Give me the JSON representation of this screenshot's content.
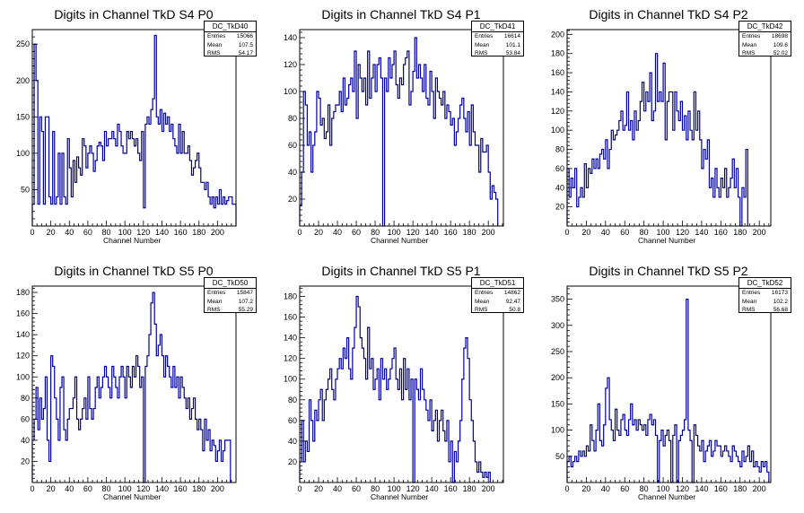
{
  "chart_data": [
    {
      "type": "histogram",
      "title": "Digits in Channel TkD S4 P0",
      "xlabel": "Channel Number",
      "xlim": [
        0,
        220
      ],
      "ylim": [
        0,
        270
      ],
      "xticks": [
        0,
        20,
        40,
        60,
        80,
        100,
        120,
        140,
        160,
        180,
        200
      ],
      "yticks": [
        50,
        100,
        150,
        200,
        250
      ],
      "stats": {
        "name": "DC_TkD40",
        "entries": "15066",
        "mean": "107.5",
        "rms": "54.17"
      },
      "bin_width": 2,
      "values": [
        30,
        250,
        200,
        30,
        150,
        130,
        30,
        150,
        150,
        40,
        30,
        130,
        30,
        40,
        100,
        30,
        100,
        40,
        30,
        120,
        80,
        40,
        90,
        60,
        95,
        80,
        70,
        120,
        110,
        80,
        100,
        110,
        100,
        75,
        90,
        110,
        115,
        110,
        90,
        130,
        110,
        120,
        120,
        130,
        120,
        110,
        140,
        130,
        110,
        100,
        100,
        130,
        120,
        130,
        120,
        110,
        120,
        100,
        90,
        130,
        25,
        140,
        150,
        140,
        160,
        175,
        262,
        150,
        140,
        160,
        130,
        155,
        140,
        150,
        130,
        140,
        120,
        110,
        100,
        140,
        100,
        130,
        100,
        100,
        110,
        90,
        70,
        80,
        90,
        100,
        80,
        60,
        60,
        50,
        60,
        40,
        30,
        40,
        25,
        40,
        30,
        50,
        30,
        40,
        30,
        35,
        40,
        40,
        30,
        30
      ]
    },
    {
      "type": "histogram",
      "title": "Digits in Channel TkD S4 P1",
      "xlabel": "Channel Number",
      "xlim": [
        0,
        216
      ],
      "ylim": [
        0,
        146
      ],
      "xticks": [
        0,
        20,
        40,
        60,
        80,
        100,
        120,
        140,
        160,
        180,
        200
      ],
      "yticks": [
        20,
        40,
        60,
        80,
        100,
        120,
        140
      ],
      "stats": {
        "name": "DC_TkD41",
        "entries": "16614",
        "mean": "101.1",
        "rms": "53.84"
      },
      "bin_width": 2,
      "values": [
        15,
        40,
        100,
        90,
        60,
        70,
        40,
        60,
        70,
        100,
        95,
        75,
        80,
        65,
        70,
        90,
        60,
        80,
        85,
        90,
        90,
        100,
        85,
        110,
        90,
        95,
        105,
        110,
        100,
        130,
        80,
        120,
        110,
        100,
        110,
        90,
        130,
        95,
        110,
        120,
        100,
        120,
        125,
        110,
        0,
        110,
        100,
        125,
        110,
        120,
        130,
        105,
        95,
        110,
        105,
        120,
        125,
        130,
        90,
        100,
        115,
        140,
        110,
        120,
        110,
        100,
        120,
        95,
        90,
        115,
        100,
        80,
        110,
        100,
        95,
        90,
        100,
        80,
        90,
        85,
        75,
        80,
        60,
        70,
        80,
        90,
        95,
        80,
        70,
        85,
        60,
        90,
        70,
        60,
        60,
        40,
        65,
        55,
        55,
        60,
        40,
        20,
        30,
        25,
        20
      ]
    },
    {
      "type": "histogram",
      "title": "Digits in Channel TkD S4 P2",
      "xlabel": "Channel Number",
      "xlim": [
        0,
        212
      ],
      "ylim": [
        0,
        205
      ],
      "xticks": [
        0,
        20,
        40,
        60,
        80,
        100,
        120,
        140,
        160,
        180,
        200
      ],
      "yticks": [
        20,
        40,
        60,
        80,
        100,
        120,
        140,
        160,
        180,
        200
      ],
      "stats": {
        "name": "DC_TkD42",
        "entries": "18698",
        "mean": "109.6",
        "rms": "52.02"
      },
      "bin_width": 2,
      "values": [
        60,
        30,
        50,
        40,
        60,
        20,
        30,
        40,
        30,
        65,
        40,
        60,
        55,
        70,
        60,
        70,
        60,
        75,
        80,
        70,
        90,
        60,
        80,
        100,
        90,
        95,
        100,
        110,
        120,
        100,
        105,
        140,
        100,
        110,
        90,
        120,
        100,
        110,
        130,
        150,
        120,
        140,
        130,
        160,
        110,
        120,
        180,
        130,
        140,
        130,
        170,
        90,
        130,
        140,
        140,
        100,
        140,
        120,
        110,
        130,
        100,
        115,
        90,
        120,
        100,
        90,
        140,
        100,
        120,
        90,
        60,
        80,
        70,
        90,
        40,
        50,
        30,
        60,
        40,
        30,
        50,
        40,
        60,
        30,
        40,
        50,
        70,
        40,
        60,
        30,
        0,
        40,
        30,
        80
      ]
    },
    {
      "type": "histogram",
      "title": "Digits in Channel TkD S5 P0",
      "xlabel": "Channel Number",
      "xlim": [
        0,
        220
      ],
      "ylim": [
        0,
        186
      ],
      "xticks": [
        0,
        20,
        40,
        60,
        80,
        100,
        120,
        140,
        160,
        180,
        200
      ],
      "yticks": [
        20,
        40,
        60,
        80,
        100,
        120,
        140,
        160,
        180
      ],
      "stats": {
        "name": "DC_TkD50",
        "entries": "15847",
        "mean": "107.2",
        "rms": "55.29"
      },
      "bin_width": 2,
      "values": [
        40,
        60,
        90,
        50,
        80,
        60,
        70,
        100,
        40,
        20,
        120,
        110,
        80,
        60,
        40,
        90,
        100,
        50,
        40,
        60,
        70,
        70,
        80,
        100,
        60,
        50,
        60,
        70,
        80,
        60,
        100,
        70,
        60,
        70,
        90,
        100,
        80,
        90,
        100,
        110,
        100,
        90,
        80,
        110,
        100,
        90,
        80,
        100,
        110,
        100,
        80,
        110,
        100,
        90,
        110,
        100,
        120,
        110,
        90,
        100,
        0,
        110,
        120,
        140,
        170,
        180,
        150,
        120,
        130,
        140,
        120,
        100,
        120,
        110,
        100,
        90,
        110,
        90,
        100,
        80,
        100,
        90,
        80,
        70,
        80,
        60,
        70,
        80,
        60,
        50,
        60,
        50,
        30,
        60,
        40,
        50,
        30,
        40,
        35,
        20,
        30,
        40,
        20,
        30,
        40,
        40,
        40
      ]
    },
    {
      "type": "histogram",
      "title": "Digits in Channel TkD S5 P1",
      "xlabel": "Channel Number",
      "xlim": [
        0,
        216
      ],
      "ylim": [
        0,
        190
      ],
      "xticks": [
        0,
        20,
        40,
        60,
        80,
        100,
        120,
        140,
        160,
        180,
        200
      ],
      "yticks": [
        20,
        40,
        60,
        80,
        100,
        120,
        140,
        160,
        180
      ],
      "stats": {
        "name": "DC_TkD51",
        "entries": "14862",
        "mean": "92.47",
        "rms": "50.8"
      },
      "bin_width": 2,
      "values": [
        20,
        60,
        20,
        40,
        30,
        80,
        60,
        40,
        70,
        60,
        80,
        90,
        60,
        80,
        90,
        100,
        110,
        90,
        80,
        100,
        110,
        120,
        110,
        130,
        120,
        140,
        110,
        100,
        130,
        150,
        180,
        170,
        140,
        130,
        120,
        100,
        150,
        110,
        120,
        90,
        100,
        110,
        80,
        120,
        100,
        110,
        90,
        100,
        110,
        120,
        130,
        100,
        90,
        110,
        80,
        120,
        90,
        110,
        80,
        100,
        0,
        100,
        90,
        80,
        110,
        90,
        80,
        70,
        60,
        80,
        50,
        60,
        70,
        40,
        60,
        70,
        50,
        40,
        60,
        20,
        40,
        0,
        30,
        20,
        40,
        60,
        100,
        130,
        140,
        120,
        80,
        60,
        40,
        20,
        10,
        20,
        10,
        5,
        10,
        5,
        10
      ]
    },
    {
      "type": "histogram",
      "title": "Digits in Channel TkD S5 P2",
      "xlabel": "Channel Number",
      "xlim": [
        0,
        212
      ],
      "ylim": [
        0,
        375
      ],
      "xticks": [
        0,
        20,
        40,
        60,
        80,
        100,
        120,
        140,
        160,
        180,
        200
      ],
      "yticks": [
        50,
        100,
        150,
        200,
        250,
        300,
        350
      ],
      "stats": {
        "name": "DC_TkD52",
        "entries": "16173",
        "mean": "102.2",
        "rms": "56.68"
      },
      "bin_width": 2,
      "values": [
        40,
        50,
        30,
        40,
        50,
        40,
        60,
        50,
        60,
        50,
        70,
        60,
        110,
        80,
        60,
        100,
        150,
        80,
        70,
        110,
        180,
        200,
        120,
        100,
        80,
        140,
        100,
        90,
        120,
        130,
        100,
        90,
        120,
        150,
        110,
        120,
        100,
        120,
        110,
        100,
        110,
        90,
        120,
        130,
        110,
        120,
        90,
        0,
        80,
        100,
        70,
        90,
        100,
        80,
        0,
        90,
        110,
        0,
        80,
        90,
        100,
        120,
        350,
        100,
        80,
        0,
        110,
        90,
        70,
        60,
        80,
        40,
        60,
        70,
        80,
        50,
        60,
        80,
        70,
        70,
        50,
        60,
        70,
        60,
        50,
        40,
        70,
        60,
        50,
        40,
        30,
        60,
        40,
        50,
        70,
        40,
        60,
        30,
        40,
        30,
        20,
        40,
        30,
        40,
        20
      ]
    }
  ]
}
